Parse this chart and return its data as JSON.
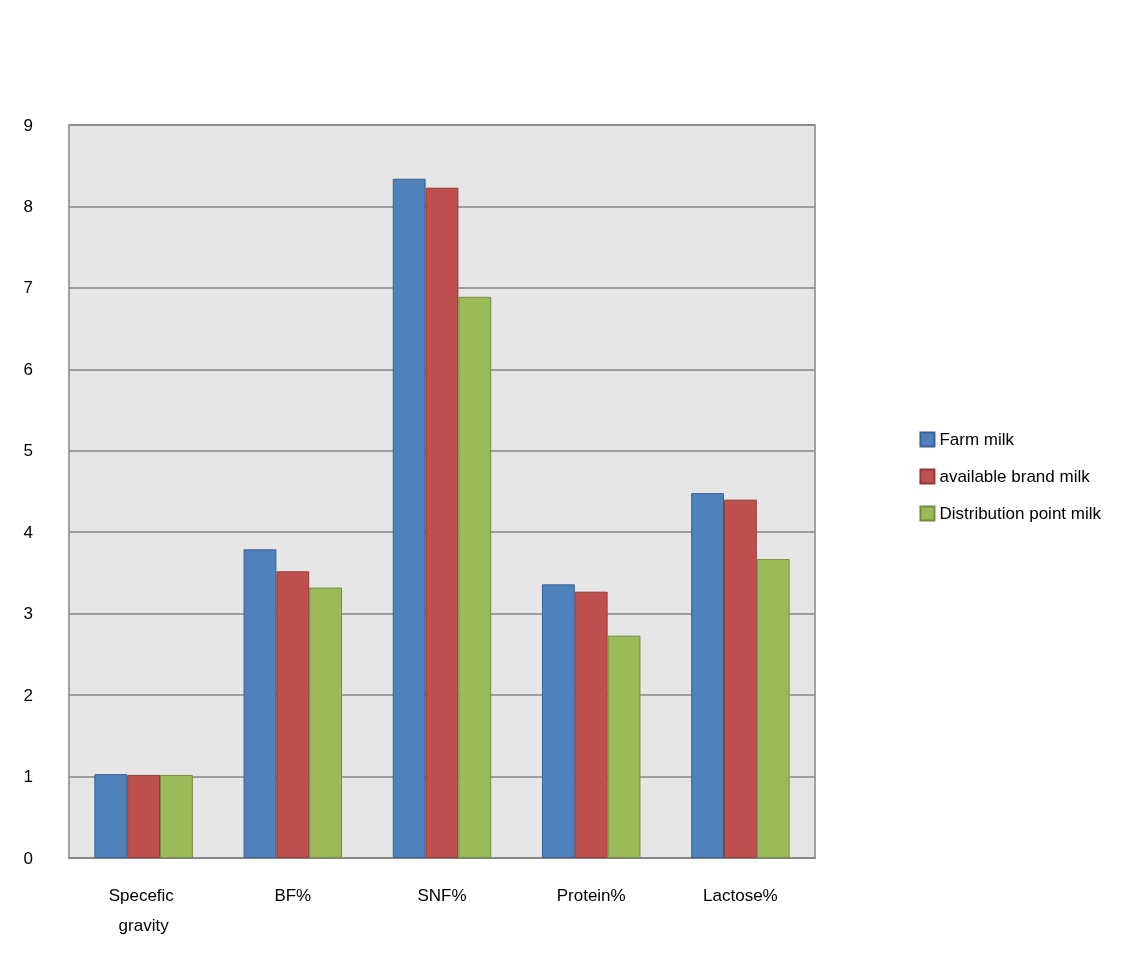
{
  "chart_data": {
    "type": "bar",
    "categories": [
      "Specefic gravity",
      "BF%",
      "SNF%",
      "Protein%",
      "Lactose%"
    ],
    "series": [
      {
        "name": "Farm milk",
        "color": "#4f81bd",
        "values": [
          1.03,
          3.79,
          8.34,
          3.36,
          4.48
        ]
      },
      {
        "name": "available brand milk",
        "color": "#c0504d",
        "values": [
          1.02,
          3.52,
          8.23,
          3.27,
          4.4
        ]
      },
      {
        "name": "Distribution point milk",
        "color": "#9bbb59",
        "values": [
          1.02,
          3.32,
          6.89,
          2.73,
          3.67
        ]
      }
    ],
    "ylim": [
      0,
      9
    ],
    "yticks": [
      0,
      1,
      2,
      3,
      4,
      5,
      6,
      7,
      8,
      9
    ],
    "grid": "y",
    "legend": "right"
  }
}
